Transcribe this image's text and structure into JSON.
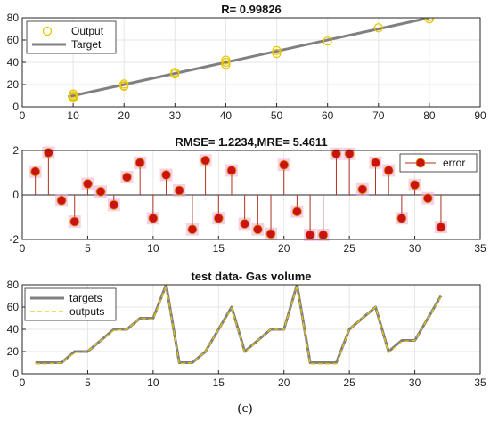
{
  "caption": "(c)",
  "chart_data": [
    {
      "type": "scatter",
      "title": "R= 0.99826",
      "xlim": [
        0,
        90
      ],
      "ylim": [
        0,
        80
      ],
      "xticks": [
        0,
        10,
        20,
        30,
        40,
        50,
        60,
        70,
        80,
        90
      ],
      "yticks": [
        0,
        20,
        40,
        60,
        80
      ],
      "grid": true,
      "legend_position": "top-left",
      "legend": [
        "Output",
        "Target"
      ],
      "colors": {
        "output": "#e8c500",
        "target": "#808080"
      },
      "series": [
        {
          "name": "Output",
          "kind": "scatter",
          "x": [
            10,
            10,
            10,
            10,
            20,
            20,
            20,
            30,
            30,
            40,
            40,
            40,
            50,
            50,
            60,
            70,
            80,
            80
          ],
          "y": [
            9,
            10,
            11.5,
            8,
            19,
            20.5,
            18.5,
            29.5,
            31,
            38,
            40,
            42,
            48,
            50.5,
            59,
            71,
            79,
            81
          ]
        },
        {
          "name": "Target",
          "kind": "line",
          "x": [
            9,
            80
          ],
          "y": [
            9,
            80
          ]
        }
      ]
    },
    {
      "type": "stem",
      "title": "RMSE= 1.2234,MRE= 5.4611",
      "xlim": [
        0,
        35
      ],
      "ylim": [
        -2,
        2
      ],
      "xticks": [
        0,
        5,
        10,
        15,
        20,
        25,
        30,
        35
      ],
      "yticks": [
        -2,
        0,
        2
      ],
      "grid": true,
      "legend_position": "top-right",
      "legend": [
        "error"
      ],
      "colors": {
        "stem": "#b03020",
        "marker": "#cc1111",
        "halo": "#f2a8d8"
      },
      "x": [
        1,
        2,
        3,
        4,
        5,
        6,
        7,
        8,
        9,
        10,
        11,
        12,
        13,
        14,
        15,
        16,
        17,
        18,
        19,
        20,
        21,
        22,
        23,
        24,
        25,
        26,
        27,
        28,
        29,
        30,
        31,
        32
      ],
      "y": [
        1.05,
        1.9,
        -0.25,
        -1.2,
        0.5,
        0.15,
        -0.45,
        0.8,
        1.45,
        -1.05,
        0.9,
        0.2,
        -1.55,
        1.55,
        -1.05,
        1.1,
        -1.3,
        -1.55,
        -1.75,
        1.35,
        -0.75,
        -1.8,
        -1.8,
        1.85,
        1.85,
        0.25,
        1.45,
        1.1,
        -1.05,
        0.45,
        -0.15,
        -1.45
      ]
    },
    {
      "type": "line",
      "title": "test data- Gas volume",
      "xlim": [
        0,
        35
      ],
      "ylim": [
        0,
        80
      ],
      "xticks": [
        0,
        5,
        10,
        15,
        20,
        25,
        30,
        35
      ],
      "yticks": [
        0,
        20,
        40,
        60,
        80
      ],
      "grid": true,
      "legend_position": "top-left",
      "legend": [
        "targets",
        "outputs"
      ],
      "colors": {
        "targets": "#808080",
        "outputs": "#e8c500"
      },
      "x": [
        1,
        2,
        3,
        4,
        5,
        6,
        7,
        8,
        9,
        10,
        11,
        12,
        13,
        14,
        15,
        16,
        17,
        18,
        19,
        20,
        21,
        22,
        23,
        24,
        25,
        26,
        27,
        28,
        29,
        30,
        31,
        32
      ],
      "series": [
        {
          "name": "targets",
          "values": [
            10,
            10,
            10,
            20,
            20,
            30,
            40,
            40,
            50,
            50,
            80,
            10,
            10,
            20,
            40,
            60,
            20,
            30,
            40,
            40,
            80,
            10,
            10,
            10,
            40,
            50,
            60,
            20,
            30,
            30,
            50,
            70
          ]
        },
        {
          "name": "outputs",
          "values": [
            9,
            9,
            10,
            19,
            20,
            30,
            39,
            40,
            50,
            49,
            79,
            9,
            10,
            20,
            40,
            59,
            19,
            30,
            40,
            40,
            79,
            9,
            9,
            9,
            40,
            50,
            60,
            19,
            29,
            30,
            50,
            69
          ]
        }
      ]
    }
  ]
}
